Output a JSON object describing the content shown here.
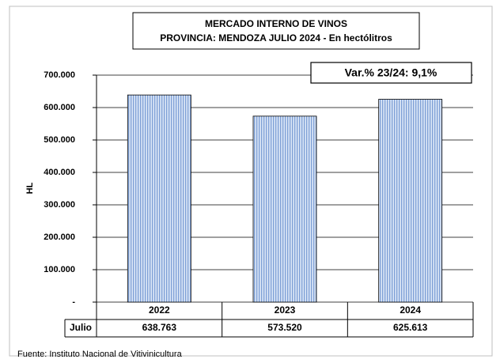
{
  "chart_data": {
    "type": "bar",
    "title": "MERCADO INTERNO DE VINOS",
    "subtitle": "PROVINCIA: MENDOZA JULIO 2024 - En hectólitros",
    "annotation": "Var.% 23/24: 9,1%",
    "ylabel": "HL",
    "source": "Fuente: Instituto Nacional de Vitivinicultura",
    "categories": [
      "2022",
      "2023",
      "2024"
    ],
    "series": [
      {
        "name": "Julio",
        "color": "#b4c7e7",
        "values": [
          638763,
          573520,
          625613
        ],
        "value_labels": [
          "638.763",
          "573.520",
          "625.613"
        ]
      }
    ],
    "ylim": [
      0,
      700000
    ],
    "yticks": [
      {
        "value": 0,
        "label": "-"
      },
      {
        "value": 100000,
        "label": "100.000"
      },
      {
        "value": 200000,
        "label": "200.000"
      },
      {
        "value": 300000,
        "label": "300.000"
      },
      {
        "value": 400000,
        "label": "400.000"
      },
      {
        "value": 500000,
        "label": "500.000"
      },
      {
        "value": 600000,
        "label": "600.000"
      },
      {
        "value": 700000,
        "label": "700.000"
      }
    ],
    "grid": true
  }
}
